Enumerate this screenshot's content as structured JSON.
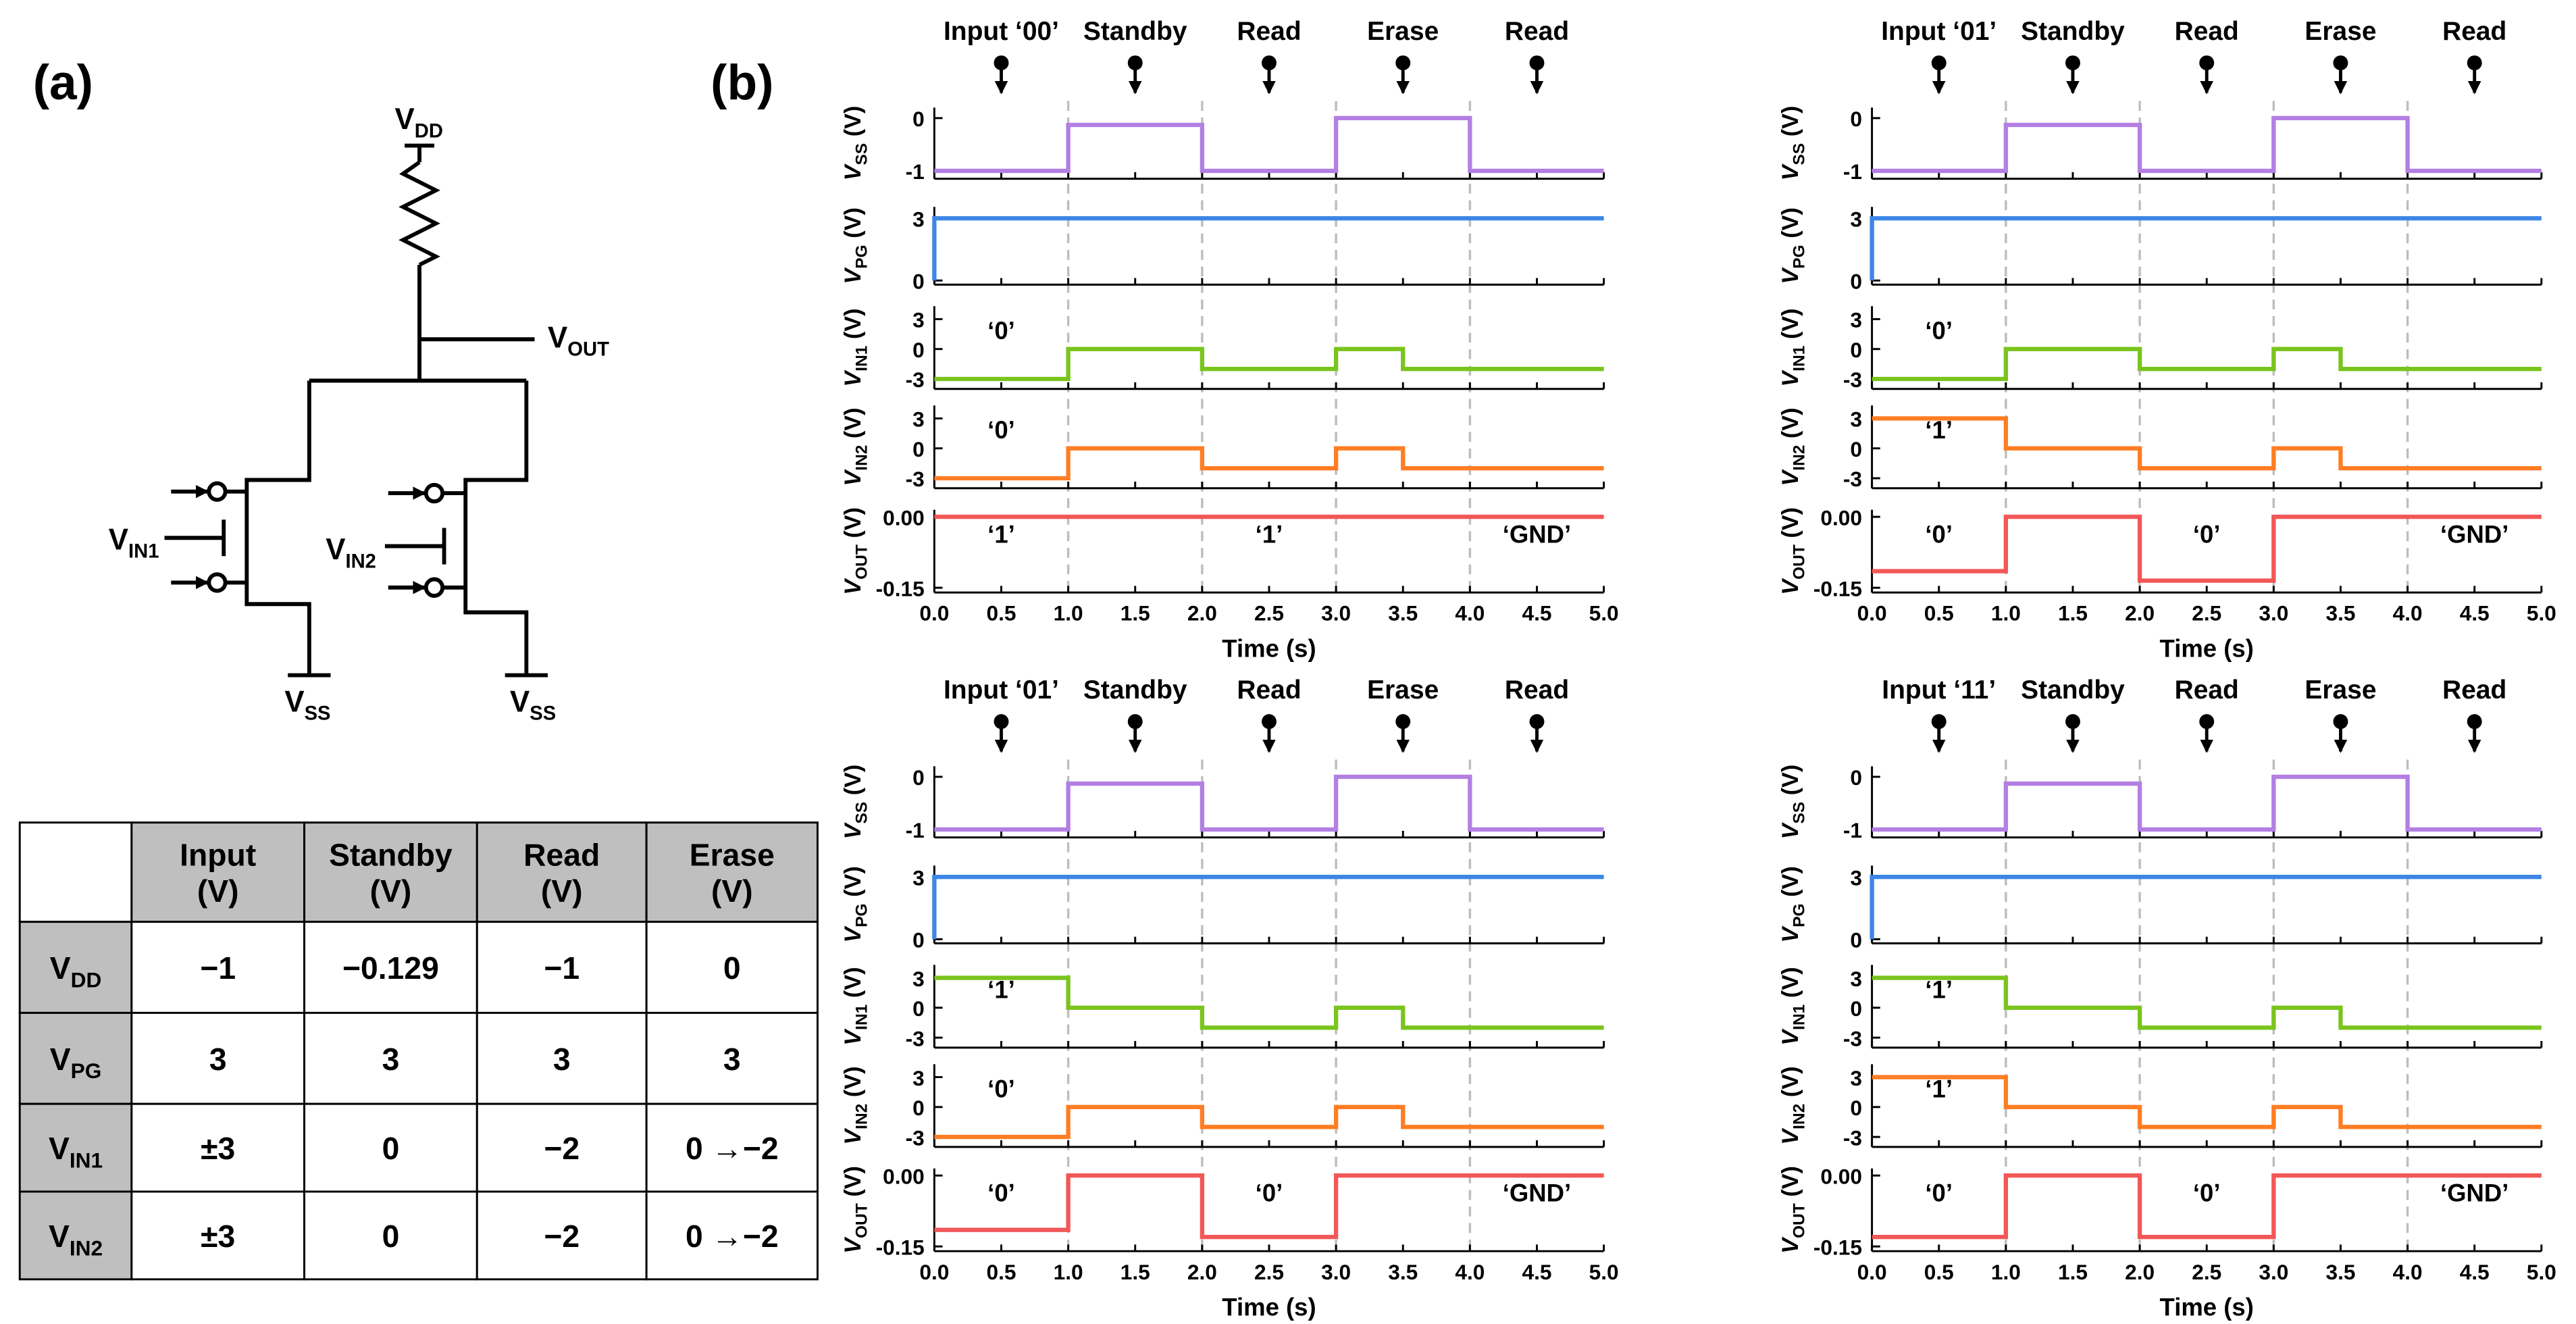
{
  "panel_labels": [
    "(a)",
    "(b)"
  ],
  "circuit": {
    "vdd": {
      "main": "V",
      "sub": "DD"
    },
    "vout": {
      "main": "V",
      "sub": "OUT"
    },
    "vin1": {
      "main": "V",
      "sub": "IN1"
    },
    "vin2": {
      "main": "V",
      "sub": "IN2"
    },
    "vss_left": {
      "main": "V",
      "sub": "SS"
    },
    "vss_right": {
      "main": "V",
      "sub": "SS"
    }
  },
  "table": {
    "columns": [
      [
        "Input",
        "(V)"
      ],
      [
        "Standby",
        "(V)"
      ],
      [
        "Read",
        "(V)"
      ],
      [
        "Erase",
        "(V)"
      ]
    ],
    "rows": [
      {
        "label": {
          "main": "V",
          "sub": "DD"
        },
        "cells": [
          "−1",
          "−0.129",
          "−1",
          "0"
        ]
      },
      {
        "label": {
          "main": "V",
          "sub": "PG"
        },
        "cells": [
          "3",
          "3",
          "3",
          "3"
        ]
      },
      {
        "label": {
          "main": "V",
          "sub": "IN1"
        },
        "cells": [
          "±3",
          "0",
          "−2",
          "0 →−2"
        ]
      },
      {
        "label": {
          "main": "V",
          "sub": "IN2"
        },
        "cells": [
          "±3",
          "0",
          "−2",
          "0 →−2"
        ]
      }
    ]
  },
  "chart_data": [
    {
      "type": "line",
      "phases": [
        "Input ‘00’",
        "Standby",
        "Read",
        "Erase",
        "Read"
      ],
      "xlabel": "Time (s)",
      "xlim": [
        0,
        5
      ],
      "xticks": [
        {
          "value": 0,
          "label": "0.0"
        },
        {
          "value": 0.5,
          "label": "0.5"
        },
        {
          "value": 1,
          "label": "1.0"
        },
        {
          "value": 1.5,
          "label": "1.5"
        },
        {
          "value": 2,
          "label": "2.0"
        },
        {
          "value": 2.5,
          "label": "2.5"
        },
        {
          "value": 3,
          "label": "3.0"
        },
        {
          "value": 3.5,
          "label": "3.5"
        },
        {
          "value": 4,
          "label": "4.0"
        },
        {
          "value": 4.5,
          "label": "4.5"
        },
        {
          "value": 5,
          "label": "5.0"
        }
      ],
      "guides": [
        1,
        2,
        3,
        4
      ],
      "panels": [
        {
          "ylabel": [
            "V",
            "SS",
            " (V)"
          ],
          "ylim": [
            -1.15,
            0.2
          ],
          "yticks": [
            0,
            -1
          ],
          "color": "#b37fe3",
          "x": [
            0,
            1,
            1,
            2,
            2,
            3,
            3,
            4,
            4,
            5
          ],
          "values": [
            -1,
            -1,
            -0.129,
            -0.129,
            -1,
            -1,
            0,
            0,
            -1,
            -1
          ]
        },
        {
          "ylabel": [
            "V",
            "PG",
            " (V)"
          ],
          "ylim": [
            -0.2,
            3.55
          ],
          "yticks": [
            3,
            0
          ],
          "color": "#3d86e6",
          "x": [
            0,
            0,
            5
          ],
          "values": [
            0,
            3,
            3
          ]
        },
        {
          "ylabel": [
            "V",
            "IN1",
            " (V)"
          ],
          "ylim": [
            -4,
            4.3
          ],
          "yticks": [
            3,
            0,
            -3
          ],
          "color": "#7ac41e",
          "x": [
            0,
            1,
            1,
            2,
            2,
            3,
            3,
            3.5,
            3.5,
            5
          ],
          "values": [
            -3,
            -3,
            0,
            0,
            -2,
            -2,
            0,
            0,
            -2,
            -2
          ],
          "annotations": [
            "‘0’"
          ],
          "annotation_color": "#000000"
        },
        {
          "ylabel": [
            "V",
            "IN2",
            " (V)"
          ],
          "ylim": [
            -4,
            4.3
          ],
          "yticks": [
            3,
            0,
            -3
          ],
          "color": "#ff7d24",
          "x": [
            0,
            1,
            1,
            2,
            2,
            3,
            3,
            3.5,
            3.5,
            5
          ],
          "values": [
            -3,
            -3,
            0,
            0,
            -2,
            -2,
            0,
            0,
            -2,
            -2
          ],
          "annotations": [
            "‘0’"
          ],
          "annotation_color": "#000000"
        },
        {
          "ylabel": [
            "V",
            "OUT",
            " (V)"
          ],
          "ylim": [
            -0.16,
            0.015
          ],
          "yticks": [
            {
              "value": 0,
              "label": "0.00"
            },
            {
              "value": -0.15,
              "label": "-0.15"
            }
          ],
          "color": "#f25757",
          "x": [
            0,
            5
          ],
          "values": [
            0,
            0
          ],
          "annotations": [
            "‘1’",
            "‘1’",
            "‘GND’"
          ],
          "annotation_color": "#f25757"
        }
      ]
    },
    {
      "type": "line",
      "phases": [
        "Input ‘01’",
        "Standby",
        "Read",
        "Erase",
        "Read"
      ],
      "xlabel": "Time (s)",
      "xlim": [
        0,
        5
      ],
      "xticks": [
        {
          "value": 0,
          "label": "0.0"
        },
        {
          "value": 0.5,
          "label": "0.5"
        },
        {
          "value": 1,
          "label": "1.0"
        },
        {
          "value": 1.5,
          "label": "1.5"
        },
        {
          "value": 2,
          "label": "2.0"
        },
        {
          "value": 2.5,
          "label": "2.5"
        },
        {
          "value": 3,
          "label": "3.0"
        },
        {
          "value": 3.5,
          "label": "3.5"
        },
        {
          "value": 4,
          "label": "4.0"
        },
        {
          "value": 4.5,
          "label": "4.5"
        },
        {
          "value": 5,
          "label": "5.0"
        }
      ],
      "guides": [
        1,
        2,
        3,
        4
      ],
      "panels": [
        {
          "ylabel": [
            "V",
            "SS",
            " (V)"
          ],
          "ylim": [
            -1.15,
            0.2
          ],
          "yticks": [
            0,
            -1
          ],
          "color": "#b37fe3",
          "x": [
            0,
            1,
            1,
            2,
            2,
            3,
            3,
            4,
            4,
            5
          ],
          "values": [
            -1,
            -1,
            -0.129,
            -0.129,
            -1,
            -1,
            0,
            0,
            -1,
            -1
          ]
        },
        {
          "ylabel": [
            "V",
            "PG",
            " (V)"
          ],
          "ylim": [
            -0.2,
            3.55
          ],
          "yticks": [
            3,
            0
          ],
          "color": "#3d86e6",
          "x": [
            0,
            0,
            5
          ],
          "values": [
            0,
            3,
            3
          ]
        },
        {
          "ylabel": [
            "V",
            "IN1",
            " (V)"
          ],
          "ylim": [
            -4,
            4.3
          ],
          "yticks": [
            3,
            0,
            -3
          ],
          "color": "#7ac41e",
          "x": [
            0,
            1,
            1,
            2,
            2,
            3,
            3,
            3.5,
            3.5,
            5
          ],
          "values": [
            -3,
            -3,
            0,
            0,
            -2,
            -2,
            0,
            0,
            -2,
            -2
          ],
          "annotations": [
            "‘0’"
          ],
          "annotation_color": "#000000"
        },
        {
          "ylabel": [
            "V",
            "IN2",
            " (V)"
          ],
          "ylim": [
            -4,
            4.3
          ],
          "yticks": [
            3,
            0,
            -3
          ],
          "color": "#ff7d24",
          "x": [
            0,
            1,
            1,
            2,
            2,
            3,
            3,
            3.5,
            3.5,
            5
          ],
          "values": [
            3,
            3,
            0,
            0,
            -2,
            -2,
            0,
            0,
            -2,
            -2
          ],
          "annotations": [
            "‘1’"
          ],
          "annotation_color": "#000000"
        },
        {
          "ylabel": [
            "V",
            "OUT",
            " (V)"
          ],
          "ylim": [
            -0.16,
            0.015
          ],
          "yticks": [
            {
              "value": 0,
              "label": "0.00"
            },
            {
              "value": -0.15,
              "label": "-0.15"
            }
          ],
          "color": "#f25757",
          "x": [
            0,
            1,
            1,
            2,
            2,
            3,
            3,
            5
          ],
          "values": [
            -0.115,
            -0.115,
            0,
            0,
            -0.135,
            -0.135,
            0,
            0
          ],
          "annotations": [
            "‘0’",
            "‘0’",
            "‘GND’"
          ],
          "annotation_color": "#f25757"
        }
      ]
    },
    {
      "type": "line",
      "phases": [
        "Input ‘01’",
        "Standby",
        "Read",
        "Erase",
        "Read"
      ],
      "xlabel": "Time (s)",
      "xlim": [
        0,
        5
      ],
      "xticks": [
        {
          "value": 0,
          "label": "0.0"
        },
        {
          "value": 0.5,
          "label": "0.5"
        },
        {
          "value": 1,
          "label": "1.0"
        },
        {
          "value": 1.5,
          "label": "1.5"
        },
        {
          "value": 2,
          "label": "2.0"
        },
        {
          "value": 2.5,
          "label": "2.5"
        },
        {
          "value": 3,
          "label": "3.0"
        },
        {
          "value": 3.5,
          "label": "3.5"
        },
        {
          "value": 4,
          "label": "4.0"
        },
        {
          "value": 4.5,
          "label": "4.5"
        },
        {
          "value": 5,
          "label": "5.0"
        }
      ],
      "guides": [
        1,
        2,
        3,
        4
      ],
      "panels": [
        {
          "ylabel": [
            "V",
            "SS",
            " (V)"
          ],
          "ylim": [
            -1.15,
            0.2
          ],
          "yticks": [
            0,
            -1
          ],
          "color": "#b37fe3",
          "x": [
            0,
            1,
            1,
            2,
            2,
            3,
            3,
            4,
            4,
            5
          ],
          "values": [
            -1,
            -1,
            -0.129,
            -0.129,
            -1,
            -1,
            0,
            0,
            -1,
            -1
          ]
        },
        {
          "ylabel": [
            "V",
            "PG",
            " (V)"
          ],
          "ylim": [
            -0.2,
            3.55
          ],
          "yticks": [
            3,
            0
          ],
          "color": "#3d86e6",
          "x": [
            0,
            0,
            5
          ],
          "values": [
            0,
            3,
            3
          ]
        },
        {
          "ylabel": [
            "V",
            "IN1",
            " (V)"
          ],
          "ylim": [
            -4,
            4.3
          ],
          "yticks": [
            3,
            0,
            -3
          ],
          "color": "#7ac41e",
          "x": [
            0,
            1,
            1,
            2,
            2,
            3,
            3,
            3.5,
            3.5,
            5
          ],
          "values": [
            3,
            3,
            0,
            0,
            -2,
            -2,
            0,
            0,
            -2,
            -2
          ],
          "annotations": [
            "‘1’"
          ],
          "annotation_color": "#000000"
        },
        {
          "ylabel": [
            "V",
            "IN2",
            " (V)"
          ],
          "ylim": [
            -4,
            4.3
          ],
          "yticks": [
            3,
            0,
            -3
          ],
          "color": "#ff7d24",
          "x": [
            0,
            1,
            1,
            2,
            2,
            3,
            3,
            3.5,
            3.5,
            5
          ],
          "values": [
            -3,
            -3,
            0,
            0,
            -2,
            -2,
            0,
            0,
            -2,
            -2
          ],
          "annotations": [
            "‘0’"
          ],
          "annotation_color": "#000000"
        },
        {
          "ylabel": [
            "V",
            "OUT",
            " (V)"
          ],
          "ylim": [
            -0.16,
            0.015
          ],
          "yticks": [
            {
              "value": 0,
              "label": "0.00"
            },
            {
              "value": -0.15,
              "label": "-0.15"
            }
          ],
          "color": "#f25757",
          "x": [
            0,
            1,
            1,
            2,
            2,
            3,
            3,
            5
          ],
          "values": [
            -0.115,
            -0.115,
            0,
            0,
            -0.13,
            -0.13,
            0,
            0
          ],
          "annotations": [
            "‘0’",
            "‘0’",
            "‘GND’"
          ],
          "annotation_color": "#f25757"
        }
      ]
    },
    {
      "type": "line",
      "phases": [
        "Input ‘11’",
        "Standby",
        "Read",
        "Erase",
        "Read"
      ],
      "xlabel": "Time (s)",
      "xlim": [
        0,
        5
      ],
      "xticks": [
        {
          "value": 0,
          "label": "0.0"
        },
        {
          "value": 0.5,
          "label": "0.5"
        },
        {
          "value": 1,
          "label": "1.0"
        },
        {
          "value": 1.5,
          "label": "1.5"
        },
        {
          "value": 2,
          "label": "2.0"
        },
        {
          "value": 2.5,
          "label": "2.5"
        },
        {
          "value": 3,
          "label": "3.0"
        },
        {
          "value": 3.5,
          "label": "3.5"
        },
        {
          "value": 4,
          "label": "4.0"
        },
        {
          "value": 4.5,
          "label": "4.5"
        },
        {
          "value": 5,
          "label": "5.0"
        }
      ],
      "guides": [
        1,
        2,
        3,
        4
      ],
      "panels": [
        {
          "ylabel": [
            "V",
            "SS",
            " (V)"
          ],
          "ylim": [
            -1.15,
            0.2
          ],
          "yticks": [
            0,
            -1
          ],
          "color": "#b37fe3",
          "x": [
            0,
            1,
            1,
            2,
            2,
            3,
            3,
            4,
            4,
            5
          ],
          "values": [
            -1,
            -1,
            -0.129,
            -0.129,
            -1,
            -1,
            0,
            0,
            -1,
            -1
          ]
        },
        {
          "ylabel": [
            "V",
            "PG",
            " (V)"
          ],
          "ylim": [
            -0.2,
            3.55
          ],
          "yticks": [
            3,
            0
          ],
          "color": "#3d86e6",
          "x": [
            0,
            0,
            5
          ],
          "values": [
            0,
            3,
            3
          ]
        },
        {
          "ylabel": [
            "V",
            "IN1",
            " (V)"
          ],
          "ylim": [
            -4,
            4.3
          ],
          "yticks": [
            3,
            0,
            -3
          ],
          "color": "#7ac41e",
          "x": [
            0,
            1,
            1,
            2,
            2,
            3,
            3,
            3.5,
            3.5,
            5
          ],
          "values": [
            3,
            3,
            0,
            0,
            -2,
            -2,
            0,
            0,
            -2,
            -2
          ],
          "annotations": [
            "‘1’"
          ],
          "annotation_color": "#000000"
        },
        {
          "ylabel": [
            "V",
            "IN2",
            " (V)"
          ],
          "ylim": [
            -4,
            4.3
          ],
          "yticks": [
            3,
            0,
            -3
          ],
          "color": "#ff7d24",
          "x": [
            0,
            1,
            1,
            2,
            2,
            3,
            3,
            3.5,
            3.5,
            5
          ],
          "values": [
            3,
            3,
            0,
            0,
            -2,
            -2,
            0,
            0,
            -2,
            -2
          ],
          "annotations": [
            "‘1’"
          ],
          "annotation_color": "#000000"
        },
        {
          "ylabel": [
            "V",
            "OUT",
            " (V)"
          ],
          "ylim": [
            -0.16,
            0.015
          ],
          "yticks": [
            {
              "value": 0,
              "label": "0.00"
            },
            {
              "value": -0.15,
              "label": "-0.15"
            }
          ],
          "color": "#f25757",
          "x": [
            0,
            1,
            1,
            2,
            2,
            3,
            3,
            5
          ],
          "values": [
            -0.13,
            -0.13,
            0,
            0,
            -0.13,
            -0.13,
            0,
            0
          ],
          "annotations": [
            "‘0’",
            "‘0’",
            "‘GND’"
          ],
          "annotation_color": "#f25757"
        }
      ]
    }
  ]
}
